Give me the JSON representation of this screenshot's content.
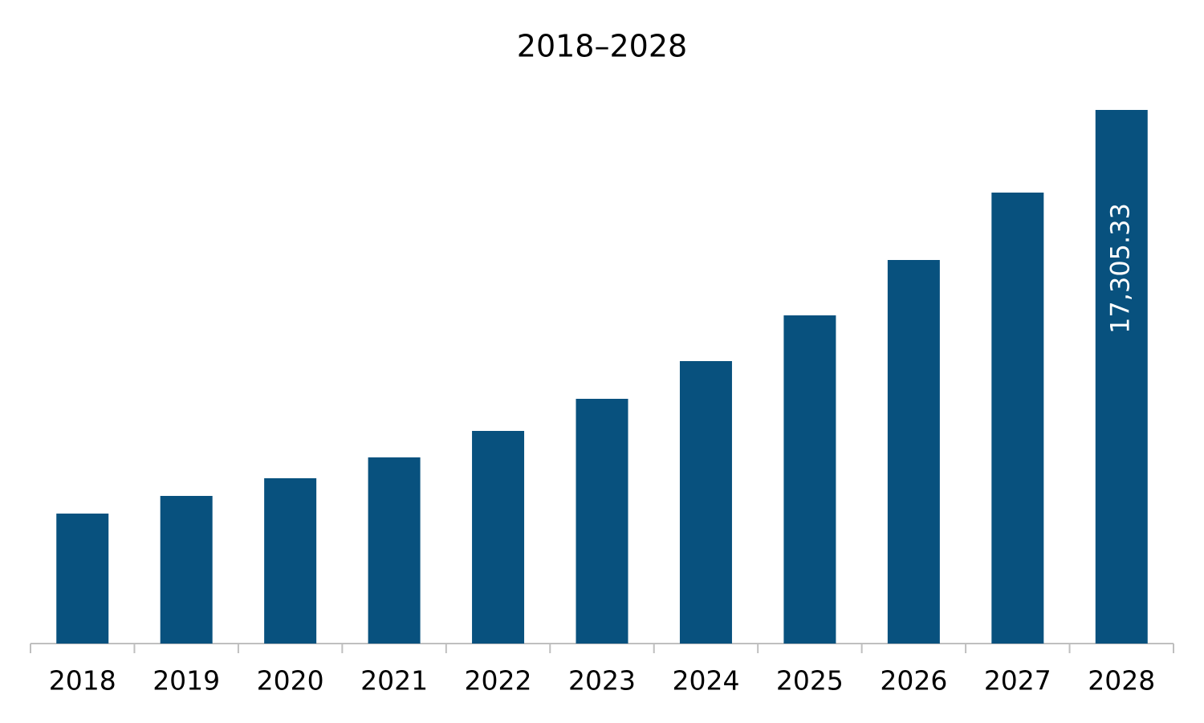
{
  "chart_data": {
    "type": "bar",
    "title": "2018–2028",
    "categories": [
      "2018",
      "2019",
      "2020",
      "2021",
      "2022",
      "2023",
      "2024",
      "2025",
      "2026",
      "2027",
      "2028"
    ],
    "values": [
      4215,
      4788,
      5361,
      6037,
      6896,
      7937,
      9160,
      10643,
      12439,
      14625,
      17305.33
    ],
    "value_labels": [
      null,
      null,
      null,
      null,
      null,
      null,
      null,
      null,
      null,
      null,
      "17,305.33"
    ],
    "color": "#08517e"
  }
}
